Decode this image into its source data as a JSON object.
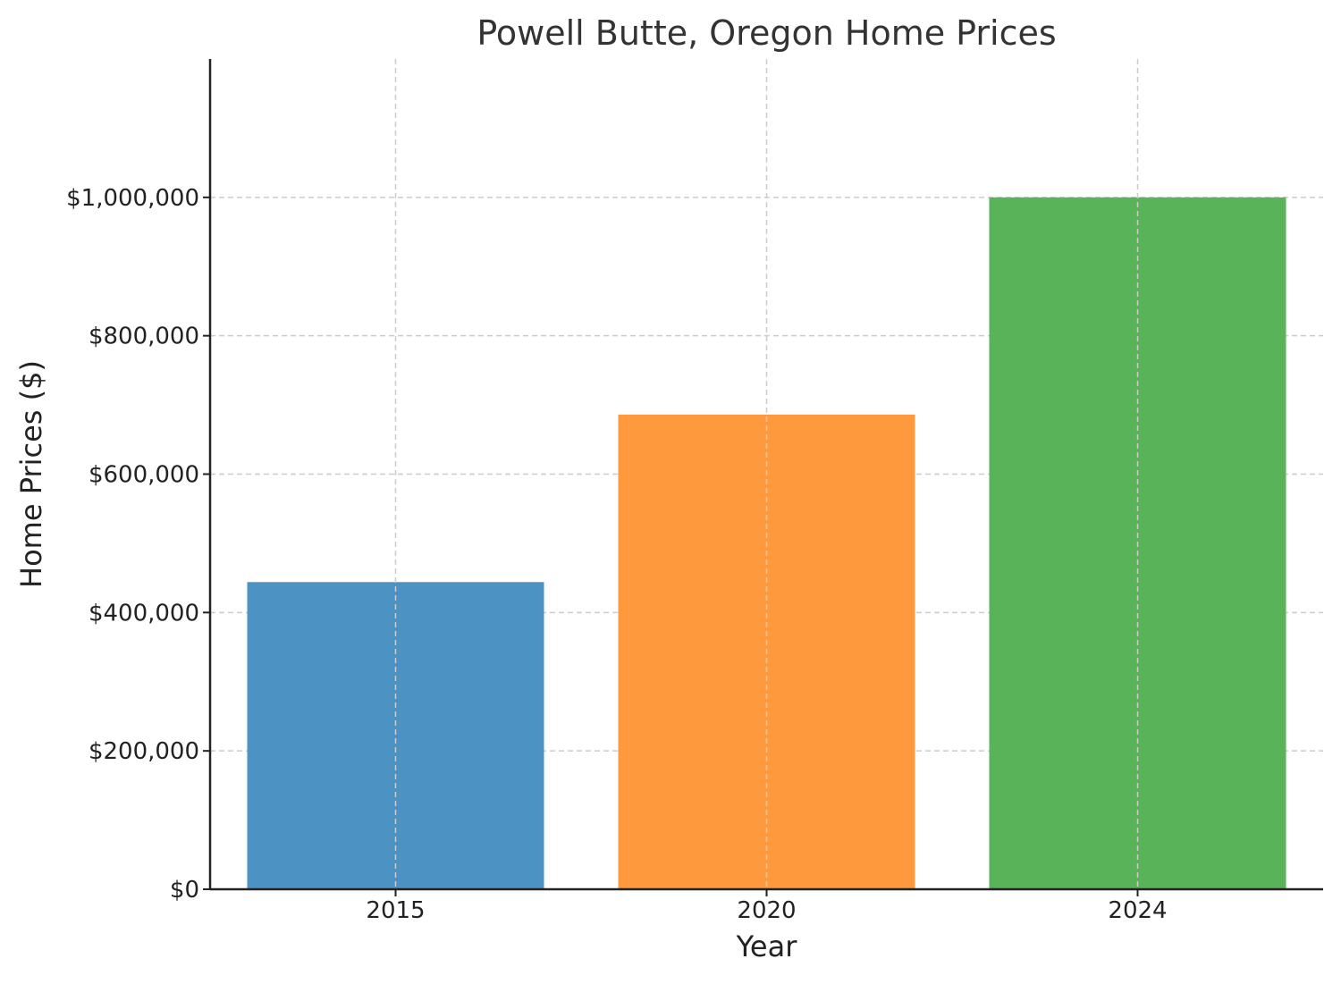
{
  "chart_data": {
    "type": "bar",
    "title": "Powell Butte, Oregon Home Prices",
    "xlabel": "Year",
    "ylabel": "Home Prices ($)",
    "categories": [
      "2015",
      "2020",
      "2024"
    ],
    "values": [
      444000,
      686000,
      1000000
    ],
    "colors": [
      "#4c92c3",
      "#ff993e",
      "#59b359"
    ],
    "ylim": [
      0,
      1200000
    ],
    "yticks": [
      0,
      200000,
      400000,
      600000,
      800000,
      1000000
    ],
    "ytick_labels": [
      "$0",
      "$200,000",
      "$400,000",
      "$600,000",
      "$800,000",
      "$1,000,000"
    ],
    "grid": true,
    "legend": "none"
  }
}
